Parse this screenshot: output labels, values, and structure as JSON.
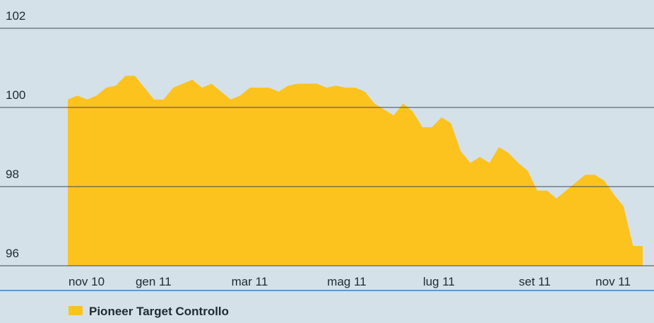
{
  "chart_data": {
    "type": "area",
    "categories": [
      "nov 10",
      null,
      null,
      null,
      null,
      null,
      null,
      "gen 11",
      null,
      null,
      null,
      null,
      null,
      null,
      null,
      null,
      null,
      "mar 11",
      null,
      null,
      null,
      null,
      null,
      null,
      null,
      null,
      null,
      "mag 11",
      null,
      null,
      null,
      null,
      null,
      null,
      null,
      null,
      null,
      "lug 11",
      null,
      null,
      null,
      null,
      null,
      null,
      null,
      null,
      null,
      "set 11",
      null,
      null,
      null,
      null,
      null,
      null,
      null,
      "nov 11",
      null,
      null,
      null,
      null,
      null
    ],
    "series": [
      {
        "name": "Pioneer Target Controllo",
        "color": "#fcc31f",
        "values": [
          100.2,
          100.3,
          100.2,
          100.3,
          100.5,
          100.55,
          100.8,
          100.8,
          100.5,
          100.2,
          100.2,
          100.5,
          100.6,
          100.7,
          100.5,
          100.6,
          100.4,
          100.2,
          100.3,
          100.5,
          100.5,
          100.5,
          100.4,
          100.55,
          100.6,
          100.6,
          100.6,
          100.5,
          100.55,
          100.5,
          100.5,
          100.4,
          100.1,
          99.95,
          99.8,
          100.1,
          99.9,
          99.5,
          99.5,
          99.75,
          99.6,
          98.9,
          98.6,
          98.75,
          98.6,
          99.0,
          98.85,
          98.6,
          98.4,
          97.9,
          97.9,
          97.7,
          97.9,
          98.1,
          98.3,
          98.3,
          98.15,
          97.8,
          97.5,
          96.5,
          96.5
        ]
      }
    ],
    "ylim": [
      96,
      102
    ],
    "yticks": [
      96,
      98,
      100,
      102
    ],
    "grid": true
  }
}
